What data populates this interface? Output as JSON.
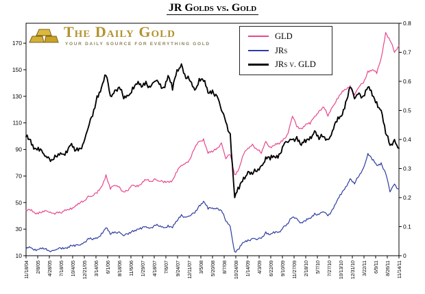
{
  "title": "JR Golds vs. Gold",
  "logo": {
    "name": "The Daily Gold",
    "tagline": "YOUR DAILY SOURCE FOR EVERYTHING GOLD",
    "gold_color": "#b3922f"
  },
  "legend": {
    "items": [
      {
        "label": "GLD",
        "color": "#e8458b",
        "thick": false
      },
      {
        "label": "JRs",
        "color": "#2b3a9f",
        "thick": false
      },
      {
        "label": "JRs v. GLD",
        "color": "#000000",
        "thick": true
      }
    ]
  },
  "chart_data": {
    "type": "line",
    "title": "JR Golds vs. Gold",
    "grid": false,
    "background": "#ffffff",
    "left_axis": {
      "min": 10,
      "max": 185,
      "ticks": [
        10,
        30,
        50,
        70,
        90,
        110,
        130,
        150,
        170
      ]
    },
    "right_axis": {
      "min": 0,
      "max": 0.8,
      "ticks": [
        0,
        0.1,
        0.2,
        0.3,
        0.4,
        0.5,
        0.6,
        0.7,
        0.8
      ]
    },
    "x_tick_labels": [
      "11/18/04",
      "2/8/05",
      "4/28/05",
      "7/18/05",
      "10/4/05",
      "12/21/05",
      "3/14/06",
      "6/1/06",
      "8/18/06",
      "11/6/06",
      "1/29/07",
      "4/18/07",
      "7/6/07",
      "9/24/07",
      "12/11/07",
      "3/5/08",
      "5/20/08",
      "8/7/08",
      "10/24/08",
      "1/14/09",
      "4/3/09",
      "6/22/09",
      "9/10/09",
      "11/27/09",
      "2/18/10",
      "5/7/10",
      "7/27/10",
      "10/13/10",
      "12/31/10",
      "3/22/11",
      "6/9/11",
      "8/26/11",
      "11/14/11"
    ],
    "x_unit": "monthly points from Nov-2004 to Nov-2011",
    "series": [
      {
        "name": "GLD",
        "axis": "left",
        "color": "#e8458b",
        "width": 1.2,
        "values": [
          44,
          44,
          42,
          43,
          43,
          43,
          42,
          43,
          42,
          44,
          46,
          47,
          49,
          51,
          55,
          55,
          57,
          62,
          71,
          60,
          63,
          62,
          58,
          59,
          63,
          63,
          64,
          67,
          66,
          68,
          66,
          65,
          66,
          67,
          73,
          78,
          80,
          83,
          91,
          96,
          98,
          87,
          88,
          91,
          95,
          83,
          86,
          71,
          76,
          86,
          91,
          94,
          90,
          87,
          96,
          92,
          93,
          94,
          98,
          102,
          115,
          107,
          106,
          109,
          109,
          115,
          119,
          122,
          115,
          122,
          128,
          132,
          135,
          138,
          131,
          137,
          140,
          149,
          150,
          147,
          159,
          178,
          172,
          163,
          168
        ]
      },
      {
        "name": "JRs",
        "axis": "left",
        "color": "#2b3a9f",
        "width": 1.2,
        "values": [
          15,
          16,
          15,
          15,
          15,
          14,
          14,
          15,
          15,
          16,
          18,
          17,
          18,
          20,
          23,
          22,
          23,
          27,
          31,
          26,
          28,
          28,
          25,
          26,
          29,
          30,
          30,
          32,
          31,
          33,
          32,
          31,
          33,
          31,
          36,
          41,
          39,
          40,
          42,
          48,
          51,
          45,
          46,
          46,
          44,
          36,
          32,
          13,
          15,
          20,
          22,
          23,
          22,
          23,
          28,
          26,
          27,
          28,
          32,
          34,
          39,
          38,
          35,
          36,
          38,
          42,
          41,
          43,
          40,
          45,
          51,
          56,
          62,
          68,
          64,
          70,
          76,
          87,
          82,
          78,
          80,
          72,
          58,
          64,
          60
        ]
      },
      {
        "name": "JRs v. GLD",
        "axis": "right",
        "color": "#000000",
        "width": 1.9,
        "values": [
          0.41,
          0.4,
          0.37,
          0.36,
          0.35,
          0.34,
          0.33,
          0.34,
          0.35,
          0.36,
          0.38,
          0.36,
          0.37,
          0.39,
          0.44,
          0.48,
          0.55,
          0.58,
          0.62,
          0.55,
          0.57,
          0.58,
          0.54,
          0.55,
          0.58,
          0.59,
          0.58,
          0.6,
          0.58,
          0.6,
          0.59,
          0.58,
          0.62,
          0.57,
          0.64,
          0.66,
          0.61,
          0.6,
          0.57,
          0.61,
          0.6,
          0.56,
          0.57,
          0.55,
          0.5,
          0.46,
          0.42,
          0.2,
          0.23,
          0.27,
          0.29,
          0.28,
          0.29,
          0.31,
          0.34,
          0.33,
          0.34,
          0.35,
          0.38,
          0.39,
          0.4,
          0.41,
          0.38,
          0.39,
          0.41,
          0.43,
          0.4,
          0.41,
          0.4,
          0.43,
          0.46,
          0.48,
          0.53,
          0.58,
          0.54,
          0.56,
          0.55,
          0.58,
          0.55,
          0.53,
          0.5,
          0.42,
          0.38,
          0.4,
          0.37
        ]
      }
    ],
    "legend_position": "top-center-right"
  }
}
